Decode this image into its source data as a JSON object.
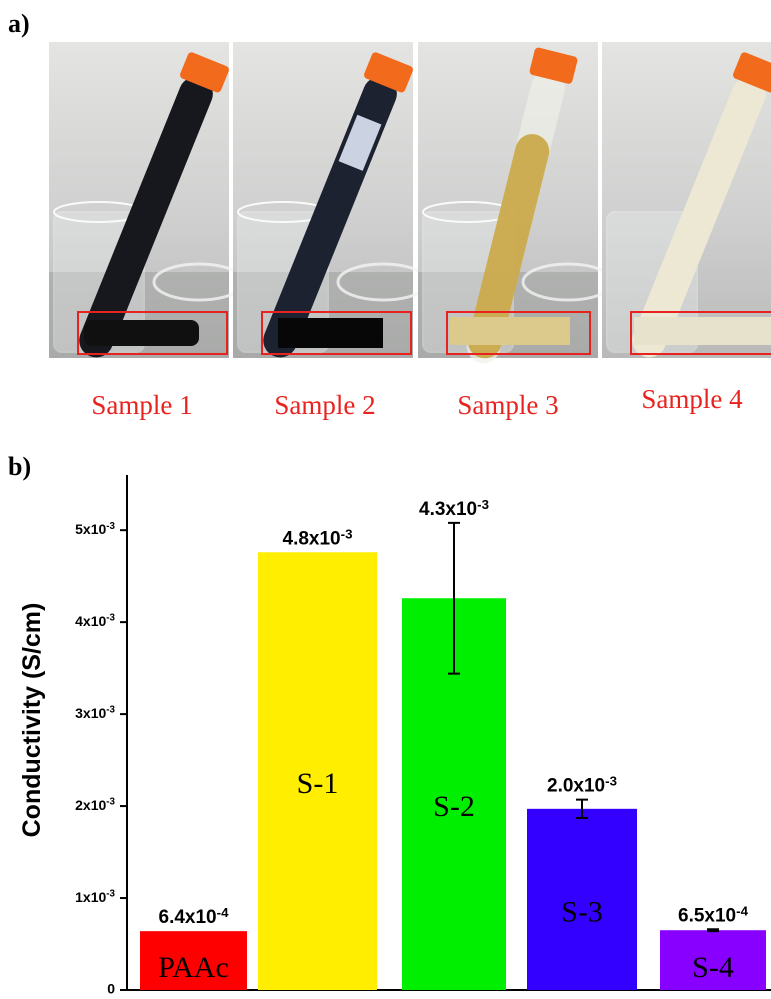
{
  "panel_labels": [
    "a)",
    "b)"
  ],
  "samples": [
    "Sample 1",
    "Sample 2",
    "Sample 3",
    "Sample 4"
  ],
  "chart_data": {
    "type": "bar",
    "y_label": "Conductivity (S/cm)",
    "categories": [
      "PAAc",
      "S-1",
      "S-2",
      "S-3",
      "S-4"
    ],
    "values": [
      0.00064,
      0.00476,
      0.00426,
      0.00197,
      0.00065
    ],
    "value_labels": [
      "6.4x10-4",
      "4.8x10-3",
      "4.3x10-3",
      "2.0x10-3",
      "6.5x10-4"
    ],
    "errors": [
      null,
      null,
      0.00082,
      0.0001,
      1e-05
    ],
    "colors": [
      "#ff0000",
      "#ffee00",
      "#00ee00",
      "#3300ff",
      "#8800ff"
    ],
    "ylim": [
      0,
      0.0056
    ],
    "yticks": [
      0,
      {
        "value": 0.001,
        "label": "1x10-3"
      },
      {
        "value": 0.002,
        "label": "2x10-3"
      },
      {
        "value": 0.003,
        "label": "3x10-3"
      },
      {
        "value": 0.004,
        "label": "4x10-3"
      },
      {
        "value": 0.005,
        "label": "5x10-3"
      }
    ]
  }
}
